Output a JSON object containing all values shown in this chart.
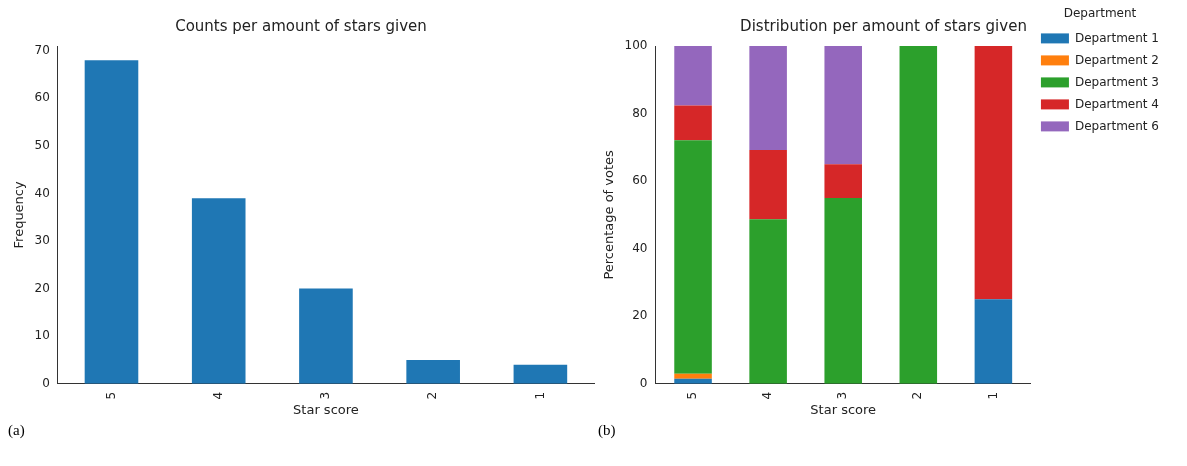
{
  "chart_data": [
    {
      "type": "bar",
      "title": "Counts per amount of stars given",
      "xlabel": "Star score",
      "ylabel": "Frequency",
      "categories": [
        "5",
        "4",
        "3",
        "2",
        "1"
      ],
      "values": [
        68,
        39,
        20,
        5,
        4
      ],
      "color": "#1f77b4",
      "ylim": [
        0,
        71
      ],
      "yticks": [
        0,
        10,
        20,
        30,
        40,
        50,
        60,
        70
      ],
      "grid": false,
      "annotations": [
        "(a)"
      ]
    },
    {
      "type": "bar",
      "title": "Distribution per amount of stars given",
      "xlabel": "Star score",
      "ylabel": "Percentage of votes",
      "legend_title": "Department",
      "categories": [
        "5",
        "4",
        "3",
        "2",
        "1"
      ],
      "stacked": true,
      "series": [
        {
          "name": "Department 1",
          "color": "#1f77b4",
          "values": [
            1.5,
            0,
            0,
            0,
            25
          ]
        },
        {
          "name": "Department 2",
          "color": "#ff7f0e",
          "values": [
            1.5,
            0,
            0,
            0,
            0
          ]
        },
        {
          "name": "Department 3",
          "color": "#2ca02c",
          "values": [
            69.1,
            48.7,
            55,
            100,
            0
          ]
        },
        {
          "name": "Department 4",
          "color": "#d62728",
          "values": [
            10.3,
            20.5,
            10,
            0,
            75
          ]
        },
        {
          "name": "Department 6",
          "color": "#9467bd",
          "values": [
            17.6,
            30.8,
            35,
            0,
            0
          ]
        }
      ],
      "ylim": [
        0,
        100
      ],
      "yticks": [
        0,
        20,
        40,
        60,
        80,
        100
      ],
      "grid": false,
      "legend": "right",
      "annotations": [
        "(b)"
      ]
    }
  ]
}
